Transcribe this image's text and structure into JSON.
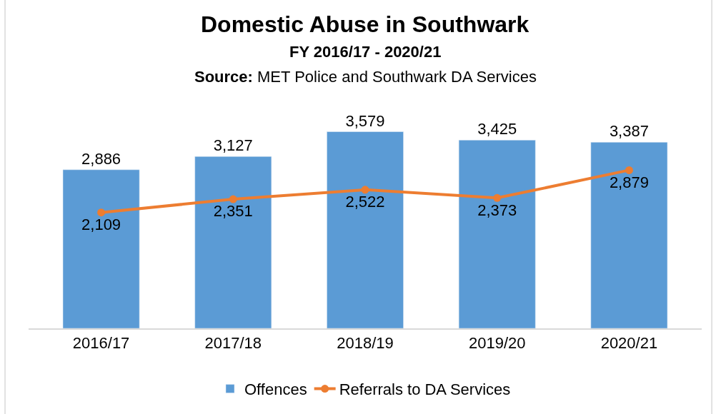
{
  "chart_data": {
    "type": "bar",
    "title": "Domestic Abuse in Southwark",
    "subtitle": "FY 2016/17 - 2020/21",
    "annotations": [
      "Source: MET Police and Southwark DA Services"
    ],
    "categories": [
      "2016/17",
      "2017/18",
      "2018/19",
      "2019/20",
      "2020/21"
    ],
    "series": [
      {
        "name": "Offences",
        "color": "#5b9bd5",
        "values": [
          2886,
          3127,
          3579,
          3425,
          3387
        ],
        "value_labels": [
          "2,886",
          "3,127",
          "3,579",
          "3,425",
          "3,387"
        ]
      },
      {
        "name": "Referrals to DA Services",
        "type": "line",
        "color": "#ed7d31",
        "values": [
          2109,
          2351,
          2522,
          2373,
          2879
        ],
        "value_labels": [
          "2,109",
          "2,351",
          "2,522",
          "2,373",
          "2,879"
        ]
      }
    ],
    "legend": "bottom",
    "marker": "circle",
    "tick_labels": "x"
  }
}
